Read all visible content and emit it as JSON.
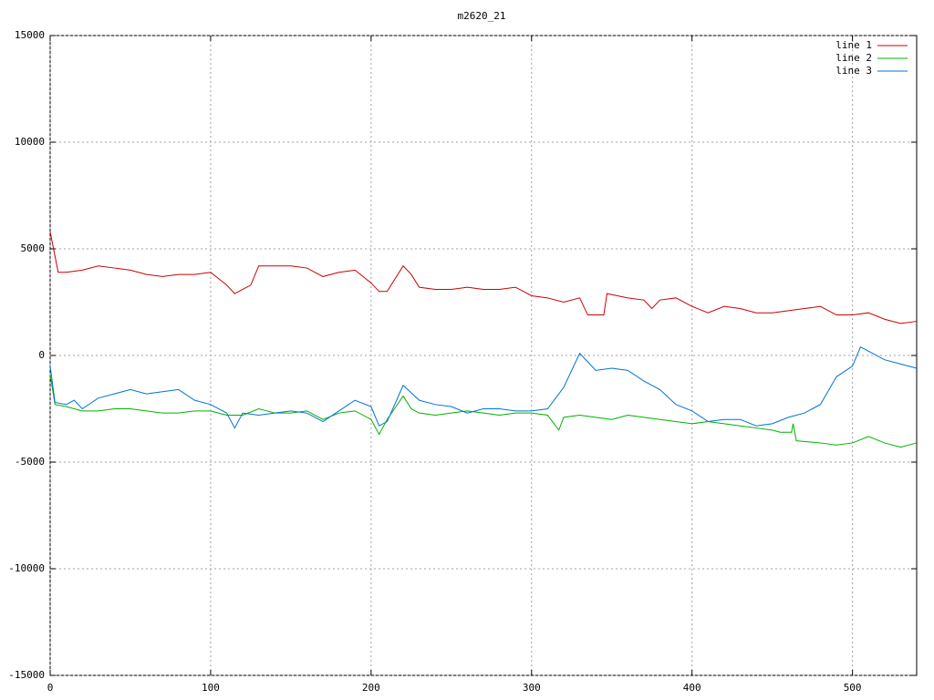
{
  "chart_data": {
    "type": "line",
    "title": "m2620_21",
    "xlim": [
      0,
      540
    ],
    "xticks": [
      0,
      100,
      200,
      300,
      400,
      500
    ],
    "ylim": [
      -15000,
      15000
    ],
    "yticks": [
      -15000,
      -10000,
      -5000,
      0,
      5000,
      10000,
      15000
    ],
    "grid": true,
    "legend": "top-right",
    "series": [
      {
        "name": "line 1",
        "color": "#cc0000",
        "x": [
          0,
          5,
          10,
          20,
          30,
          40,
          50,
          60,
          70,
          80,
          90,
          100,
          110,
          115,
          120,
          125,
          130,
          140,
          150,
          160,
          170,
          180,
          190,
          200,
          205,
          210,
          220,
          225,
          230,
          240,
          250,
          260,
          270,
          280,
          290,
          300,
          310,
          320,
          330,
          335,
          345,
          347,
          360,
          370,
          375,
          380,
          390,
          400,
          410,
          420,
          430,
          440,
          450,
          460,
          470,
          480,
          490,
          500,
          510,
          520,
          530,
          540
        ],
        "values": [
          5800,
          3900,
          3900,
          4000,
          4200,
          4100,
          4000,
          3800,
          3700,
          3800,
          3800,
          3900,
          3300,
          2900,
          3100,
          3300,
          4200,
          4200,
          4200,
          4100,
          3700,
          3900,
          4000,
          3400,
          3000,
          3000,
          4200,
          3800,
          3200,
          3100,
          3100,
          3200,
          3100,
          3100,
          3200,
          2800,
          2700,
          2500,
          2700,
          1900,
          1900,
          2900,
          2700,
          2600,
          2200,
          2600,
          2700,
          2300,
          2000,
          2300,
          2200,
          2000,
          2000,
          2100,
          2200,
          2300,
          1900,
          1900,
          2000,
          1700,
          1500,
          1600
        ]
      },
      {
        "name": "line 2",
        "color": "#00b000",
        "x": [
          0,
          3,
          10,
          20,
          30,
          40,
          50,
          60,
          70,
          80,
          90,
          100,
          110,
          120,
          130,
          140,
          150,
          160,
          170,
          180,
          190,
          200,
          205,
          210,
          220,
          225,
          230,
          240,
          250,
          260,
          270,
          280,
          290,
          300,
          310,
          317,
          320,
          330,
          340,
          350,
          360,
          370,
          380,
          390,
          400,
          410,
          420,
          430,
          440,
          450,
          455,
          462,
          463,
          465,
          480,
          490,
          500,
          510,
          520,
          530,
          540
        ],
        "values": [
          -900,
          -2300,
          -2400,
          -2600,
          -2600,
          -2500,
          -2500,
          -2600,
          -2700,
          -2700,
          -2600,
          -2600,
          -2800,
          -2800,
          -2500,
          -2700,
          -2700,
          -2600,
          -3000,
          -2700,
          -2600,
          -3000,
          -3700,
          -3000,
          -1900,
          -2500,
          -2700,
          -2800,
          -2700,
          -2600,
          -2700,
          -2800,
          -2700,
          -2700,
          -2800,
          -3500,
          -2900,
          -2800,
          -2900,
          -3000,
          -2800,
          -2900,
          -3000,
          -3100,
          -3200,
          -3100,
          -3200,
          -3300,
          -3400,
          -3500,
          -3600,
          -3600,
          -3200,
          -4000,
          -4100,
          -4200,
          -4100,
          -3800,
          -4100,
          -4300,
          -4100
        ]
      },
      {
        "name": "line 3",
        "color": "#0072d8",
        "x": [
          0,
          3,
          10,
          15,
          20,
          30,
          40,
          50,
          60,
          70,
          80,
          90,
          100,
          110,
          115,
          120,
          130,
          140,
          150,
          160,
          170,
          180,
          190,
          200,
          205,
          210,
          220,
          230,
          240,
          250,
          260,
          270,
          280,
          290,
          300,
          310,
          320,
          330,
          335,
          340,
          350,
          360,
          370,
          380,
          390,
          400,
          410,
          420,
          430,
          440,
          450,
          460,
          470,
          480,
          490,
          500,
          505,
          510,
          520,
          530,
          540
        ],
        "values": [
          -500,
          -2200,
          -2300,
          -2100,
          -2500,
          -2000,
          -1800,
          -1600,
          -1800,
          -1700,
          -1600,
          -2100,
          -2300,
          -2700,
          -3400,
          -2700,
          -2800,
          -2700,
          -2600,
          -2700,
          -3100,
          -2600,
          -2100,
          -2400,
          -3300,
          -3100,
          -1400,
          -2100,
          -2300,
          -2400,
          -2700,
          -2500,
          -2500,
          -2600,
          -2600,
          -2500,
          -1500,
          100,
          -300,
          -700,
          -600,
          -700,
          -1200,
          -1600,
          -2300,
          -2600,
          -3100,
          -3000,
          -3000,
          -3300,
          -3200,
          -2900,
          -2700,
          -2300,
          -1000,
          -500,
          400,
          200,
          -200,
          -400,
          -600
        ]
      }
    ]
  }
}
